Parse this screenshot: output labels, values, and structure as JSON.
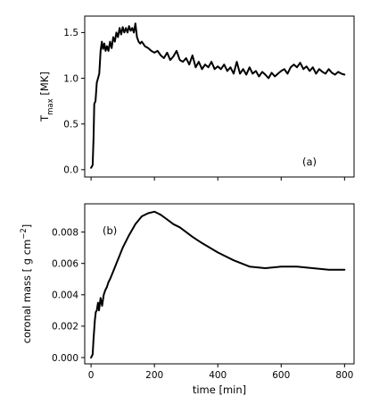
{
  "chart_data": [
    {
      "type": "line",
      "panel_label": "(a)",
      "ylabel_main": "T",
      "ylabel_sub": "max",
      "ylabel_unit": " [MK]",
      "xlabel": "",
      "xlim": [
        -20,
        830
      ],
      "ylim": [
        -0.08,
        1.68
      ],
      "xticks": [
        0,
        200,
        400,
        600,
        800
      ],
      "show_xtick_labels": false,
      "yticks": [
        0.0,
        0.5,
        1.0,
        1.5
      ],
      "ytick_labels": [
        "0.0",
        "0.5",
        "1.0",
        "1.5"
      ],
      "grid": false,
      "series": [
        {
          "x": [
            0,
            5,
            8,
            10,
            14,
            18,
            22,
            26,
            30,
            34,
            38,
            42,
            46,
            50,
            55,
            60,
            65,
            70,
            75,
            80,
            85,
            90,
            95,
            100,
            105,
            110,
            115,
            120,
            125,
            130,
            135,
            140,
            145,
            150,
            155,
            160,
            170,
            180,
            190,
            200,
            210,
            220,
            230,
            240,
            250,
            260,
            270,
            280,
            290,
            300,
            310,
            320,
            330,
            340,
            350,
            360,
            370,
            380,
            390,
            400,
            410,
            420,
            430,
            440,
            450,
            460,
            470,
            480,
            490,
            500,
            510,
            520,
            530,
            540,
            550,
            560,
            570,
            580,
            590,
            600,
            610,
            620,
            630,
            640,
            650,
            660,
            670,
            680,
            690,
            700,
            710,
            720,
            730,
            740,
            750,
            760,
            770,
            780,
            790,
            800
          ],
          "y": [
            0.02,
            0.05,
            0.35,
            0.72,
            0.75,
            0.95,
            1.0,
            1.05,
            1.3,
            1.4,
            1.32,
            1.38,
            1.3,
            1.35,
            1.3,
            1.4,
            1.33,
            1.45,
            1.4,
            1.5,
            1.45,
            1.55,
            1.48,
            1.56,
            1.5,
            1.55,
            1.5,
            1.57,
            1.52,
            1.55,
            1.5,
            1.6,
            1.45,
            1.4,
            1.38,
            1.4,
            1.35,
            1.33,
            1.3,
            1.28,
            1.3,
            1.25,
            1.22,
            1.28,
            1.2,
            1.24,
            1.3,
            1.2,
            1.18,
            1.22,
            1.15,
            1.25,
            1.12,
            1.18,
            1.1,
            1.15,
            1.12,
            1.18,
            1.1,
            1.13,
            1.1,
            1.15,
            1.08,
            1.12,
            1.05,
            1.18,
            1.05,
            1.1,
            1.04,
            1.12,
            1.05,
            1.08,
            1.02,
            1.07,
            1.04,
            1.0,
            1.06,
            1.02,
            1.05,
            1.08,
            1.1,
            1.05,
            1.12,
            1.15,
            1.12,
            1.17,
            1.1,
            1.13,
            1.08,
            1.12,
            1.05,
            1.1,
            1.07,
            1.05,
            1.1,
            1.06,
            1.04,
            1.07,
            1.05,
            1.04
          ]
        }
      ]
    },
    {
      "type": "line",
      "panel_label": "(b)",
      "ylabel_main": "coronal mass [ g cm",
      "ylabel_sup": "−2",
      "ylabel_unit": "]",
      "xlabel": "time [min]",
      "xlim": [
        -20,
        830
      ],
      "ylim": [
        -0.0004,
        0.0098
      ],
      "xticks": [
        0,
        200,
        400,
        600,
        800
      ],
      "xtick_labels": [
        "0",
        "200",
        "400",
        "600",
        "800"
      ],
      "show_xtick_labels": true,
      "yticks": [
        0.0,
        0.002,
        0.004,
        0.006,
        0.008
      ],
      "ytick_labels": [
        "0.000",
        "0.002",
        "0.004",
        "0.006",
        "0.008"
      ],
      "grid": false,
      "series": [
        {
          "x": [
            0,
            5,
            8,
            12,
            15,
            18,
            22,
            25,
            30,
            35,
            40,
            45,
            50,
            55,
            60,
            70,
            80,
            90,
            100,
            120,
            140,
            160,
            180,
            200,
            210,
            220,
            240,
            260,
            280,
            300,
            320,
            350,
            400,
            450,
            500,
            550,
            600,
            650,
            700,
            750,
            800
          ],
          "y": [
            0.0,
            0.0002,
            0.0012,
            0.0024,
            0.0029,
            0.003,
            0.0035,
            0.003,
            0.0038,
            0.0033,
            0.004,
            0.0043,
            0.0045,
            0.0048,
            0.005,
            0.0055,
            0.006,
            0.0065,
            0.007,
            0.0078,
            0.0085,
            0.009,
            0.0092,
            0.0093,
            0.0092,
            0.0091,
            0.0088,
            0.0085,
            0.0083,
            0.008,
            0.0077,
            0.0073,
            0.0067,
            0.0062,
            0.0058,
            0.0057,
            0.0058,
            0.0058,
            0.0057,
            0.0056,
            0.0056
          ]
        }
      ]
    }
  ]
}
